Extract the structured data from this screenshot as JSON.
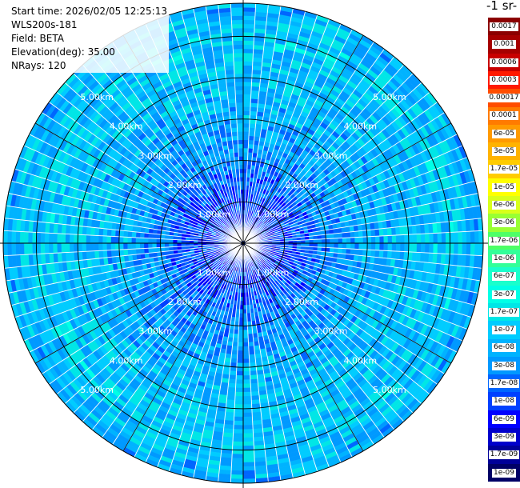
{
  "info": {
    "start_time": "Start time: 2026/02/05 12:25:13",
    "instrument": "WLS200s-181",
    "field": "Field: BETA",
    "elevation": "Elevation(deg): 35.00",
    "nrays": "NRays: 120"
  },
  "colorbar": {
    "title": "-1 sr-",
    "levels": [
      {
        "label": "0.0017",
        "color": "#8b0000"
      },
      {
        "label": "0.001",
        "color": "#a60000"
      },
      {
        "label": "0.0006",
        "color": "#c80000"
      },
      {
        "label": "0.0003",
        "color": "#ff1a00"
      },
      {
        "label": "0.00017",
        "color": "#ff4d00"
      },
      {
        "label": "0.0001",
        "color": "#ff7b00"
      },
      {
        "label": "6e-05",
        "color": "#ff9a00"
      },
      {
        "label": "3e-05",
        "color": "#ffb300"
      },
      {
        "label": "1.7e-05",
        "color": "#ffcc00"
      },
      {
        "label": "1e-05",
        "color": "#ffff00"
      },
      {
        "label": "6e-06",
        "color": "#d9ff1a"
      },
      {
        "label": "3e-06",
        "color": "#99ff33"
      },
      {
        "label": "1.7e-06",
        "color": "#4dff66"
      },
      {
        "label": "1e-06",
        "color": "#33ff99"
      },
      {
        "label": "6e-07",
        "color": "#1affcc"
      },
      {
        "label": "3e-07",
        "color": "#00ffe6"
      },
      {
        "label": "1.7e-07",
        "color": "#00e6e6"
      },
      {
        "label": "1e-07",
        "color": "#00ccff"
      },
      {
        "label": "6e-08",
        "color": "#00b3ff"
      },
      {
        "label": "3e-08",
        "color": "#0099ff"
      },
      {
        "label": "1.7e-08",
        "color": "#0066ff"
      },
      {
        "label": "1e-08",
        "color": "#0040ff"
      },
      {
        "label": "6e-09",
        "color": "#0000ff"
      },
      {
        "label": "3e-09",
        "color": "#0000cc"
      },
      {
        "label": "1.7e-09",
        "color": "#000099"
      },
      {
        "label": "1e-09",
        "color": "#000066"
      }
    ]
  },
  "chart_data": {
    "type": "heatmap",
    "projection": "polar (PPI scan)",
    "field": "BETA",
    "elevation_deg": 35.0,
    "n_rays": 120,
    "max_range_km": 5.8,
    "range_rings_km": [
      1,
      2,
      3,
      4,
      5
    ],
    "range_ring_labels": [
      "1.00km",
      "2.00km",
      "3.00km",
      "4.00km",
      "5.00km"
    ],
    "spokes_deg": [
      0,
      30,
      60,
      90,
      120,
      150,
      180,
      210,
      240,
      270,
      300,
      330
    ],
    "value_scale": "log",
    "value_range": [
      1e-09,
      0.0017
    ],
    "radial_profile": [
      {
        "range_km": 0.5,
        "typical_value": 1e-08
      },
      {
        "range_km": 1.0,
        "typical_value": 1.2e-08
      },
      {
        "range_km": 1.5,
        "typical_value": 1.7e-08
      },
      {
        "range_km": 2.0,
        "typical_value": 3e-08
      },
      {
        "range_km": 3.0,
        "typical_value": 6e-08
      },
      {
        "range_km": 4.0,
        "typical_value": 8e-08
      },
      {
        "range_km": 5.0,
        "typical_value": 1e-07
      },
      {
        "range_km": 5.8,
        "typical_value": 6e-08
      }
    ],
    "grid": true
  }
}
